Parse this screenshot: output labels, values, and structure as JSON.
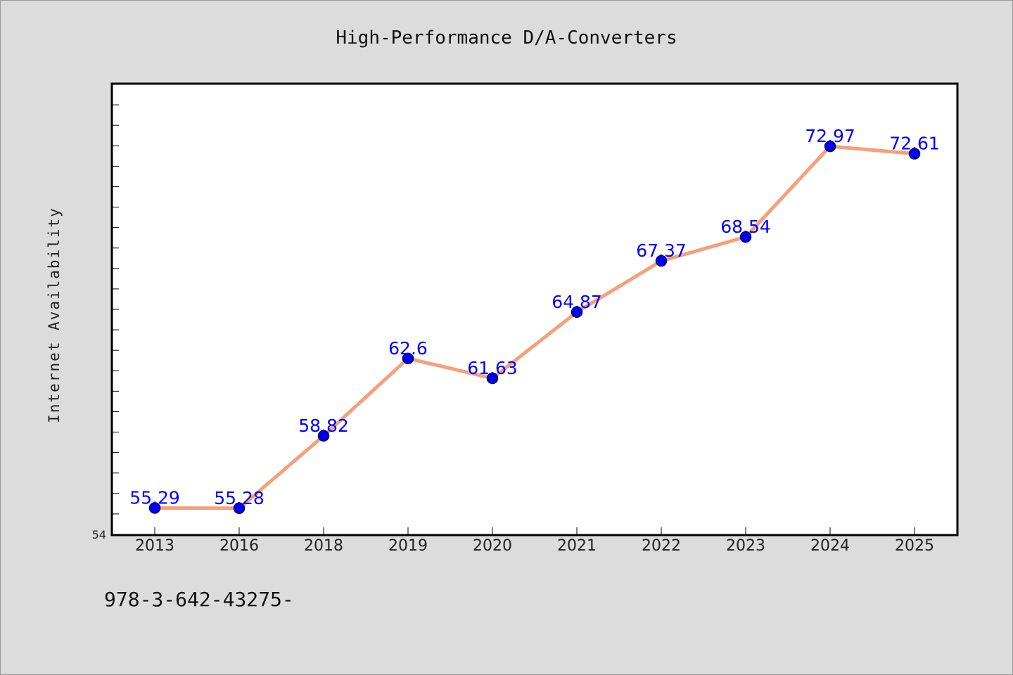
{
  "chart_data": {
    "type": "line",
    "title": "High-Performance D/A-Converters",
    "xlabel": "",
    "ylabel": "Internet Availability",
    "categories": [
      "2013",
      "2016",
      "2018",
      "2019",
      "2020",
      "2021",
      "2022",
      "2023",
      "2024",
      "2025"
    ],
    "series": [
      {
        "values": [
          55.29,
          55.28,
          58.82,
          62.6,
          61.63,
          64.87,
          67.37,
          68.54,
          72.97,
          72.61
        ],
        "labels": [
          "55.29",
          "55.28",
          "58.82",
          "62.6",
          "61.63",
          "64.87",
          "67.37",
          "68.54",
          "72.97",
          "72.61"
        ]
      }
    ],
    "ylim": [
      54,
      76
    ],
    "y_tick_labels": [
      "54"
    ],
    "grid": false,
    "legend": "none",
    "colors": {
      "line": "#f5a07a",
      "marker": "#0000ee",
      "label": "#0000ff",
      "background": "#dcdcdc",
      "plot": "#ffffff"
    }
  },
  "footnote": "978-3-642-43275-"
}
